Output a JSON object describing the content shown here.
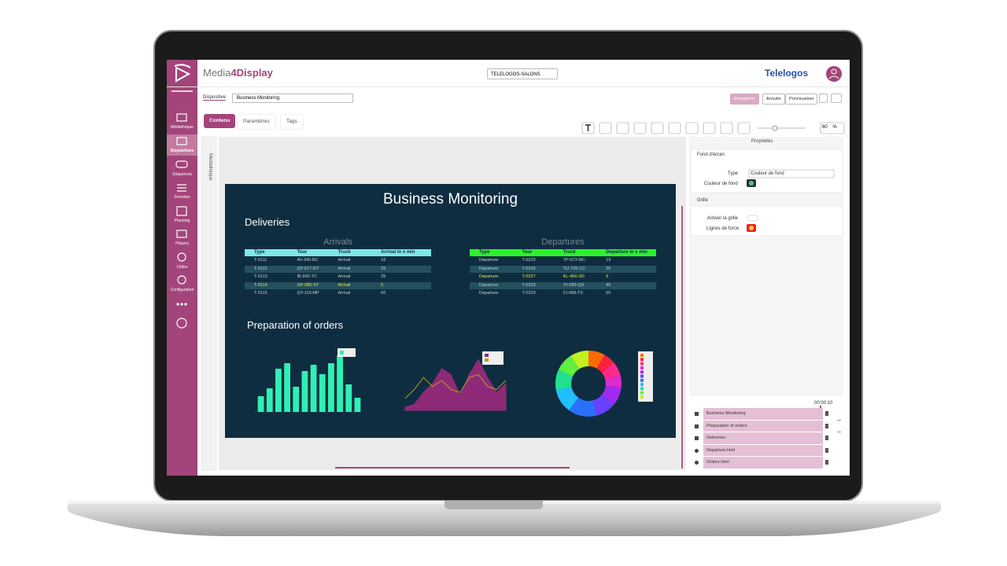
{
  "app": {
    "logo_main": "Media",
    "logo_accent": "4Display",
    "org_selector": "TELELOGOS-SALONS",
    "brand": "Telelogos",
    "sidebar": [
      "Médiathèque",
      "Dispositives",
      "Séquences",
      "Données",
      "Planning",
      "Players",
      "Cibles",
      "Configuration"
    ],
    "sidebar_active": 1,
    "dispositive_label": "Dispositive",
    "dispositive_name": "Business Monitoring",
    "buttons": [
      "Enregistrer",
      "Annuler",
      "Prévisualiser"
    ],
    "tabs": [
      "Contenu",
      "Paramètres",
      "Tags"
    ],
    "active_tab": 0,
    "zoom": 60,
    "zoom_unit": "%",
    "media_panel": "Médiathèque",
    "properties": {
      "title": "Propriétés",
      "background": {
        "title": "Fond d'écran",
        "type_label": "Type",
        "type_value": "Couleur de fond",
        "color_label": "Couleur de fond"
      },
      "grid": {
        "title": "Grille",
        "enable_label": "Activer la grille",
        "lines_label": "Lignes de force"
      }
    },
    "timeline": {
      "time": "00:00:10",
      "layers": [
        "Business Monitoring",
        "Preparation of orders",
        "Deliveries",
        "Departure.html",
        "Orders.html"
      ]
    }
  },
  "preview": {
    "title": "Business Monitoring",
    "deliveries": "Deliveries",
    "orders": "Preparation of orders",
    "arrivals": {
      "title": "Arrivals",
      "header_color": "#7fe6e6",
      "columns": [
        "Type",
        "Tour",
        "Truck",
        "Arrival in x min"
      ],
      "rows": [
        [
          "T-0111",
          "AV-340-BC",
          "Arrival",
          "16"
        ],
        [
          "T-0112",
          "QY-017-DY",
          "Arrival",
          "25"
        ],
        [
          "T-0113",
          "IB-960-TC",
          "Arrival",
          "25"
        ],
        [
          "T-0114",
          "GP-980-ST",
          "Arrival",
          "5"
        ],
        [
          "T-0115",
          "QY-110-MP",
          "Arrival",
          "60"
        ]
      ],
      "highlight_row": 3
    },
    "departures": {
      "title": "Departures",
      "header_color": "#2cf22c",
      "columns": [
        "Type",
        "Tour",
        "Truck",
        "Departure in x min"
      ],
      "rows": [
        [
          "Departure",
          "T-0225",
          "TP-073-MC",
          "19"
        ],
        [
          "Departure",
          "T-0226",
          "YU-726-CC",
          "20"
        ],
        [
          "Departure",
          "T-0227",
          "KL-456-SD",
          "9"
        ],
        [
          "Departure",
          "T-0228",
          "JY-083-QS",
          "40"
        ],
        [
          "Departure",
          "T-0229",
          "CI-088-TS",
          "50"
        ]
      ],
      "highlight_row": 2
    },
    "bar_chart": {
      "type": "bar",
      "color": "#2ff0b4",
      "ylim": [
        0,
        80
      ],
      "values": [
        20,
        30,
        55,
        62,
        32,
        52,
        60,
        48,
        62,
        72,
        35,
        18
      ]
    },
    "area_chart": {
      "type": "area",
      "ylim": [
        0,
        100
      ],
      "series": [
        {
          "color": "#8e2a78",
          "values": [
            5,
            10,
            30,
            45,
            70,
            60,
            25,
            60,
            85,
            55,
            30,
            45
          ]
        },
        {
          "color": "#b8a020",
          "values": [
            20,
            35,
            55,
            40,
            50,
            35,
            30,
            55,
            60,
            40,
            35,
            50
          ]
        }
      ]
    },
    "donut_chart": {
      "type": "pie",
      "values": [
        8,
        6,
        7,
        6,
        9,
        10,
        14,
        12,
        10,
        9,
        9
      ],
      "colors": [
        "#ff6a00",
        "#ff2040",
        "#ff2a8a",
        "#e02ad0",
        "#a02af0",
        "#6a40ff",
        "#2a70ff",
        "#20c0ff",
        "#20e090",
        "#60f040",
        "#c0f020"
      ]
    }
  }
}
